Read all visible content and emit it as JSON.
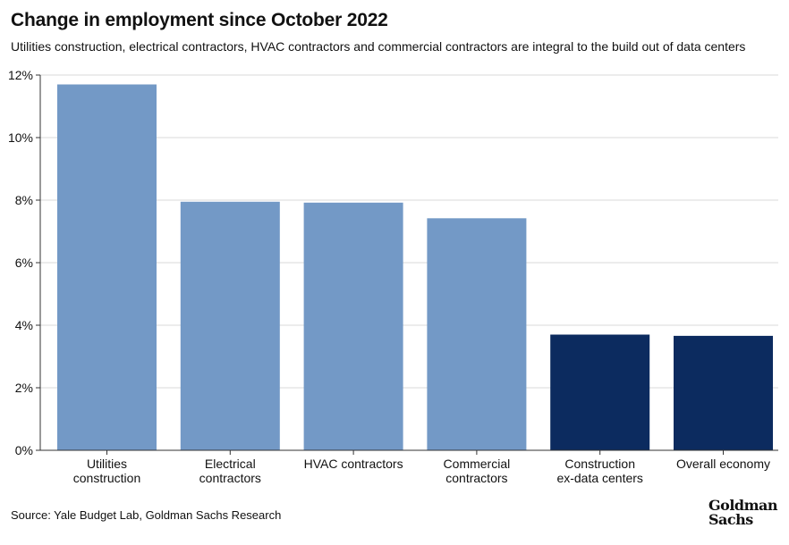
{
  "header": {
    "title": "Change in employment since October 2022",
    "subtitle": "Utilities construction, electrical contractors, HVAC contractors and commercial contractors are integral to the build out of data centers"
  },
  "footer": {
    "source": "Source: Yale Budget Lab, Goldman Sachs Research",
    "logo_line1": "Goldman",
    "logo_line2": "Sachs"
  },
  "colors": {
    "light_bar": "#7399c6",
    "dark_bar": "#0c2b5f",
    "grid": "#d9d9d9",
    "axis": "#333333"
  },
  "chart_data": {
    "type": "bar",
    "categories": [
      [
        "Utilities",
        "construction"
      ],
      [
        "Electrical",
        "contractors"
      ],
      [
        "HVAC contractors"
      ],
      [
        "Commercial",
        "contractors"
      ],
      [
        "Construction",
        "ex-data centers"
      ],
      [
        "Overall economy"
      ]
    ],
    "values": [
      11.7,
      7.95,
      7.92,
      7.42,
      3.7,
      3.66
    ],
    "bar_colors": [
      "light",
      "light",
      "light",
      "light",
      "dark",
      "dark"
    ],
    "yticks": [
      "0%",
      "2%",
      "4%",
      "6%",
      "8%",
      "10%",
      "12%"
    ],
    "ylim": [
      0,
      12
    ],
    "grid": true,
    "xlabel": "",
    "ylabel": ""
  }
}
